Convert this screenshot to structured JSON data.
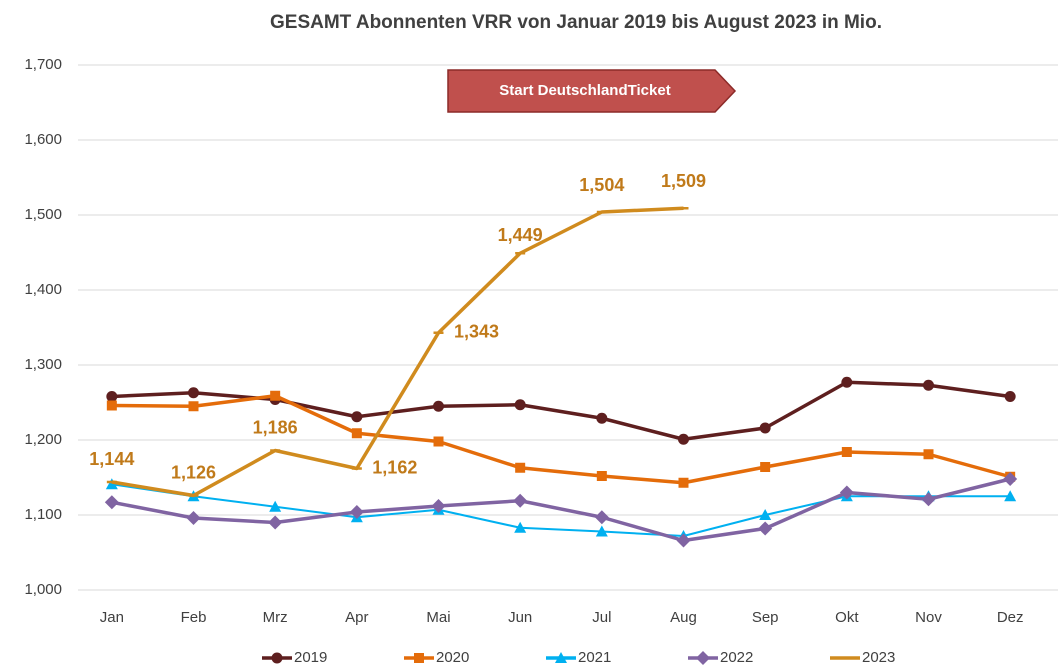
{
  "chart_data": {
    "type": "line",
    "title": "GESAMT Abonnenten VRR von Januar 2019 bis August 2023 in Mio.",
    "annotation": "Start DeutschlandTicket",
    "categories": [
      "Jan",
      "Feb",
      "Mrz",
      "Apr",
      "Mai",
      "Jun",
      "Jul",
      "Aug",
      "Sep",
      "Okt",
      "Nov",
      "Dez"
    ],
    "ylim": [
      1000,
      1700
    ],
    "yticks": [
      {
        "value": 1000,
        "label": "1,000"
      },
      {
        "value": 1100,
        "label": "1,100"
      },
      {
        "value": 1200,
        "label": "1,200"
      },
      {
        "value": 1300,
        "label": "1,300"
      },
      {
        "value": 1400,
        "label": "1,400"
      },
      {
        "value": 1500,
        "label": "1,500"
      },
      {
        "value": 1600,
        "label": "1,600"
      },
      {
        "value": 1700,
        "label": "1,700"
      }
    ],
    "grid": true,
    "legend": "bottom",
    "series": [
      {
        "name": "2019",
        "color": "#5e1f1f",
        "marker": "circle",
        "values": [
          1258,
          1263,
          1254,
          1231,
          1245,
          1247,
          1229,
          1201,
          1216,
          1277,
          1273,
          1258
        ]
      },
      {
        "name": "2020",
        "color": "#e46c0a",
        "marker": "square",
        "values": [
          1246,
          1245,
          1259,
          1209,
          1198,
          1163,
          1152,
          1143,
          1164,
          1184,
          1181,
          1151
        ]
      },
      {
        "name": "2021",
        "color": "#00b0f0",
        "marker": "triangle",
        "values": [
          1141,
          1125,
          1111,
          1097,
          1107,
          1083,
          1078,
          1072,
          1100,
          1125,
          1125,
          1125
        ]
      },
      {
        "name": "2022",
        "color": "#8064a2",
        "marker": "diamond",
        "values": [
          1117,
          1096,
          1090,
          1104,
          1112,
          1119,
          1097,
          1066,
          1082,
          1130,
          1121,
          1148
        ]
      },
      {
        "name": "2023",
        "color": "#d08b1e",
        "marker": "dash",
        "values": [
          1144,
          1126,
          1186,
          1162,
          1343,
          1449,
          1504,
          1509,
          null,
          null,
          null,
          null
        ],
        "value_labels": [
          "1,144",
          "1,126",
          "1,186",
          "1,162",
          "1,343",
          "1,449",
          "1,504",
          "1,509",
          null,
          null,
          null,
          null
        ]
      }
    ]
  }
}
